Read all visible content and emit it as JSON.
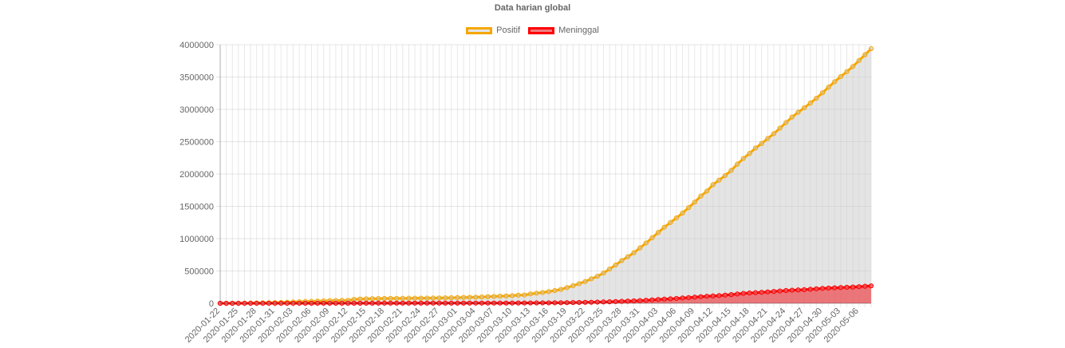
{
  "chart_data": {
    "type": "line",
    "title": "Data harian global",
    "xlabel": "",
    "ylabel": "",
    "ylim": [
      0,
      4000000
    ],
    "yticks": [
      0,
      500000,
      1000000,
      1500000,
      2000000,
      2500000,
      3000000,
      3500000,
      4000000
    ],
    "grid": true,
    "legend_position": "top-center",
    "start_date": "2020-01-22",
    "end_date": "2020-05-07",
    "xtick_labels": [
      "2020-01-22",
      "2020-01-25",
      "2020-01-28",
      "2020-01-31",
      "2020-02-03",
      "2020-02-06",
      "2020-02-09",
      "2020-02-12",
      "2020-02-15",
      "2020-02-18",
      "2020-02-21",
      "2020-02-24",
      "2020-02-27",
      "2020-03-01",
      "2020-03-04",
      "2020-03-07",
      "2020-03-10",
      "2020-03-13",
      "2020-03-16",
      "2020-03-19",
      "2020-03-22",
      "2020-03-25",
      "2020-03-28",
      "2020-03-31",
      "2020-04-03",
      "2020-04-06",
      "2020-04-09",
      "2020-04-12",
      "2020-04-15",
      "2020-04-18",
      "2020-04-21",
      "2020-04-24",
      "2020-04-27",
      "2020-04-30",
      "2020-05-03",
      "2020-05-06"
    ],
    "series": [
      {
        "name": "Positif",
        "border_color": "#f5a700",
        "fill_color": "rgba(205,205,205,0.55)",
        "values": [
          555,
          654,
          941,
          1434,
          2118,
          2927,
          5578,
          6166,
          8234,
          9927,
          12038,
          16787,
          19881,
          23892,
          27635,
          30794,
          34391,
          37120,
          40150,
          42762,
          44802,
          45221,
          60368,
          66885,
          69030,
          71224,
          73258,
          75136,
          75639,
          76197,
          76819,
          78572,
          78958,
          79561,
          80406,
          81388,
          82746,
          84112,
          86011,
          88369,
          90306,
          92840,
          95120,
          97886,
          101801,
          105847,
          109821,
          113590,
          118620,
          125875,
          128343,
          145193,
          156097,
          167449,
          181546,
          197142,
          214910,
          242708,
          272166,
          304524,
          336953,
          378235,
          418045,
          467653,
          529591,
          593291,
          660706,
          720117,
          782365,
          857487,
          932605,
          1013466,
          1095917,
          1176060,
          1249754,
          1321481,
          1396476,
          1479804,
          1565278,
          1657526,
          1735650,
          1834721,
          1904838,
          1976191,
          2056055,
          2152437,
          2240190,
          2317758,
          2401378,
          2472259,
          2549294,
          2624074,
          2708885,
          2795731,
          2881140,
          2955033,
          3023722,
          3097229,
          3172287,
          3256846,
          3343777,
          3427343,
          3506729,
          3583055,
          3662691,
          3755341,
          3845718,
          3938064
        ]
      },
      {
        "name": "Meninggal",
        "border_color": "#ff0000",
        "fill_color": "rgba(235,90,95,0.8)",
        "values": [
          17,
          18,
          26,
          42,
          56,
          82,
          131,
          133,
          171,
          213,
          259,
          362,
          426,
          492,
          564,
          634,
          719,
          806,
          906,
          1013,
          1113,
          1118,
          1371,
          1523,
          1666,
          1770,
          1868,
          2007,
          2122,
          2247,
          2251,
          2458,
          2469,
          2629,
          2708,
          2770,
          2814,
          2872,
          2941,
          2996,
          3085,
          3160,
          3254,
          3348,
          3460,
          3558,
          3802,
          3988,
          4262,
          4615,
          4720,
          5404,
          5819,
          6440,
          7126,
          7905,
          8733,
          9867,
          11299,
          12973,
          14651,
          16505,
          18625,
          21181,
          23970,
          27198,
          30652,
          33925,
          37582,
          42107,
          46809,
          52983,
          58787,
          64606,
          69374,
          74565,
          81865,
          88338,
          95455,
          102525,
          108503,
          114091,
          119482,
          126713,
          134235,
          143800,
          153822,
          159510,
          165044,
          169986,
          176583,
          183066,
          190858,
          197159,
          202846,
          206544,
          211167,
          217153,
          224172,
          230270,
          235436,
          239592,
          243401,
          247470,
          251537,
          257239,
          263831,
          269567
        ]
      }
    ]
  }
}
